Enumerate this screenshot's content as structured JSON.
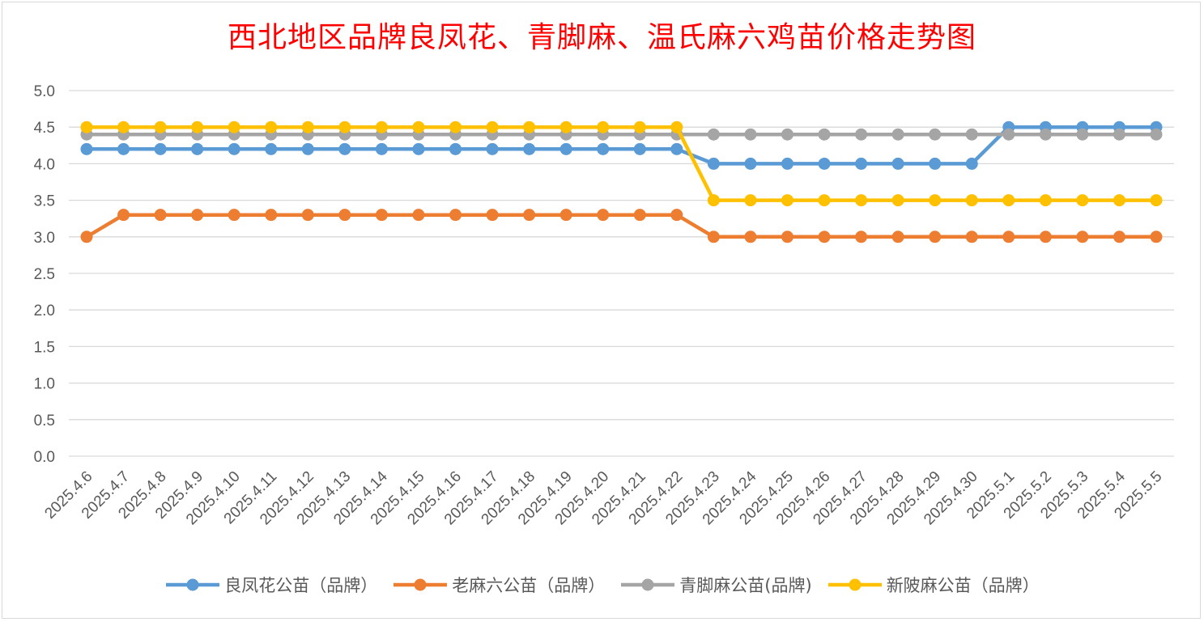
{
  "chart_data": {
    "type": "line",
    "title": "西北地区品牌良凤花、青脚麻、温氏麻六鸡苗价格走势图",
    "xlabel": "",
    "ylabel": "",
    "ylim": [
      0,
      5
    ],
    "yticks": [
      "0.0",
      "0.5",
      "1.0",
      "1.5",
      "2.0",
      "2.5",
      "3.0",
      "3.5",
      "4.0",
      "4.5",
      "5.0"
    ],
    "grid": true,
    "legend_position": "bottom",
    "categories": [
      "2025.4.6",
      "2025.4.7",
      "2025.4.8",
      "2025.4.9",
      "2025.4.10",
      "2025.4.11",
      "2025.4.12",
      "2025.4.13",
      "2025.4.14",
      "2025.4.15",
      "2025.4.16",
      "2025.4.17",
      "2025.4.18",
      "2025.4.19",
      "2025.4.20",
      "2025.4.21",
      "2025.4.22",
      "2025.4.23",
      "2025.4.24",
      "2025.4.25",
      "2025.4.26",
      "2025.4.27",
      "2025.4.28",
      "2025.4.29",
      "2025.4.30",
      "2025.5.1",
      "2025.5.2",
      "2025.5.3",
      "2025.5.4",
      "2025.5.5"
    ],
    "series": [
      {
        "name": "良凤花公苗（品牌）",
        "color": "#5b9bd5",
        "values": [
          4.2,
          4.2,
          4.2,
          4.2,
          4.2,
          4.2,
          4.2,
          4.2,
          4.2,
          4.2,
          4.2,
          4.2,
          4.2,
          4.2,
          4.2,
          4.2,
          4.2,
          4.0,
          4.0,
          4.0,
          4.0,
          4.0,
          4.0,
          4.0,
          4.0,
          4.5,
          4.5,
          4.5,
          4.5,
          4.5
        ]
      },
      {
        "name": "老麻六公苗（品牌）",
        "color": "#ed7d31",
        "values": [
          3.0,
          3.3,
          3.3,
          3.3,
          3.3,
          3.3,
          3.3,
          3.3,
          3.3,
          3.3,
          3.3,
          3.3,
          3.3,
          3.3,
          3.3,
          3.3,
          3.3,
          3.0,
          3.0,
          3.0,
          3.0,
          3.0,
          3.0,
          3.0,
          3.0,
          3.0,
          3.0,
          3.0,
          3.0,
          3.0
        ]
      },
      {
        "name": "青脚麻公苗(品牌)",
        "color": "#a5a5a5",
        "values": [
          4.4,
          4.4,
          4.4,
          4.4,
          4.4,
          4.4,
          4.4,
          4.4,
          4.4,
          4.4,
          4.4,
          4.4,
          4.4,
          4.4,
          4.4,
          4.4,
          4.4,
          4.4,
          4.4,
          4.4,
          4.4,
          4.4,
          4.4,
          4.4,
          4.4,
          4.4,
          4.4,
          4.4,
          4.4,
          4.4
        ]
      },
      {
        "name": "新陂麻公苗（品牌）",
        "color": "#ffc000",
        "values": [
          4.5,
          4.5,
          4.5,
          4.5,
          4.5,
          4.5,
          4.5,
          4.5,
          4.5,
          4.5,
          4.5,
          4.5,
          4.5,
          4.5,
          4.5,
          4.5,
          4.5,
          3.5,
          3.5,
          3.5,
          3.5,
          3.5,
          3.5,
          3.5,
          3.5,
          3.5,
          3.5,
          3.5,
          3.5,
          3.5
        ]
      }
    ]
  }
}
